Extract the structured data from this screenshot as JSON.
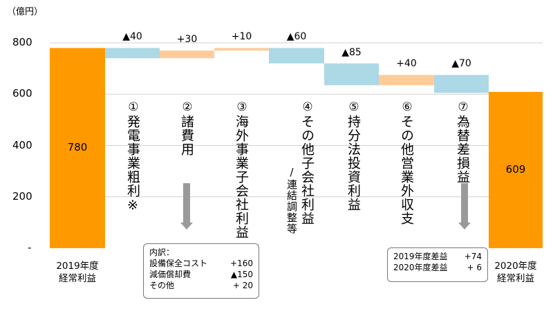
{
  "unit_label": "（億円）",
  "chart_data": {
    "type": "bar",
    "subtype": "waterfall",
    "ylim": [
      0,
      800
    ],
    "yticks": [
      "800",
      "600",
      "400",
      "200",
      "-"
    ],
    "start": {
      "label_line1": "2019年度",
      "label_line2": "経常利益",
      "value": 780,
      "value_label": "780",
      "color": "#FF9900"
    },
    "end": {
      "label_line1": "2020年度",
      "label_line2": "経常利益",
      "value": 609,
      "value_label": "609",
      "color": "#FF9900"
    },
    "steps": [
      {
        "num": "①",
        "label": "発電事業粗利※",
        "delta": -40,
        "delta_label": "▲40",
        "color": "#ADD8E6"
      },
      {
        "num": "②",
        "label": "諸費用",
        "delta": 30,
        "delta_label": "+30",
        "color": "#FFCC99"
      },
      {
        "num": "③",
        "label": "海外事業子会社利益",
        "delta": 10,
        "delta_label": "+10",
        "color": "#FFCC99"
      },
      {
        "num": "④",
        "label": "その他子会社利益",
        "sublabel": "/連結調整等",
        "delta": -60,
        "delta_label": "▲60",
        "color": "#ADD8E6"
      },
      {
        "num": "⑤",
        "label": "持分法投資利益",
        "delta": -85,
        "delta_label": "▲85",
        "color": "#ADD8E6"
      },
      {
        "num": "⑥",
        "label": "その他営業外収支",
        "delta": 40,
        "delta_label": "+40",
        "color": "#FFCC99"
      },
      {
        "num": "⑦",
        "label": "為替差損益",
        "delta": -70,
        "delta_label": "▲70",
        "color": "#ADD8E6"
      }
    ]
  },
  "note_left": {
    "title": "内訳：",
    "rows": [
      {
        "name": "設備保全コスト",
        "value": "+160"
      },
      {
        "name": "減価償却費",
        "value": "▲150"
      },
      {
        "name": "その他",
        "value": "+ 20"
      }
    ]
  },
  "note_right": {
    "rows": [
      {
        "name": "2019年度差益",
        "value": "+74"
      },
      {
        "name": "2020年度差益",
        "value": "+ 6"
      }
    ]
  }
}
